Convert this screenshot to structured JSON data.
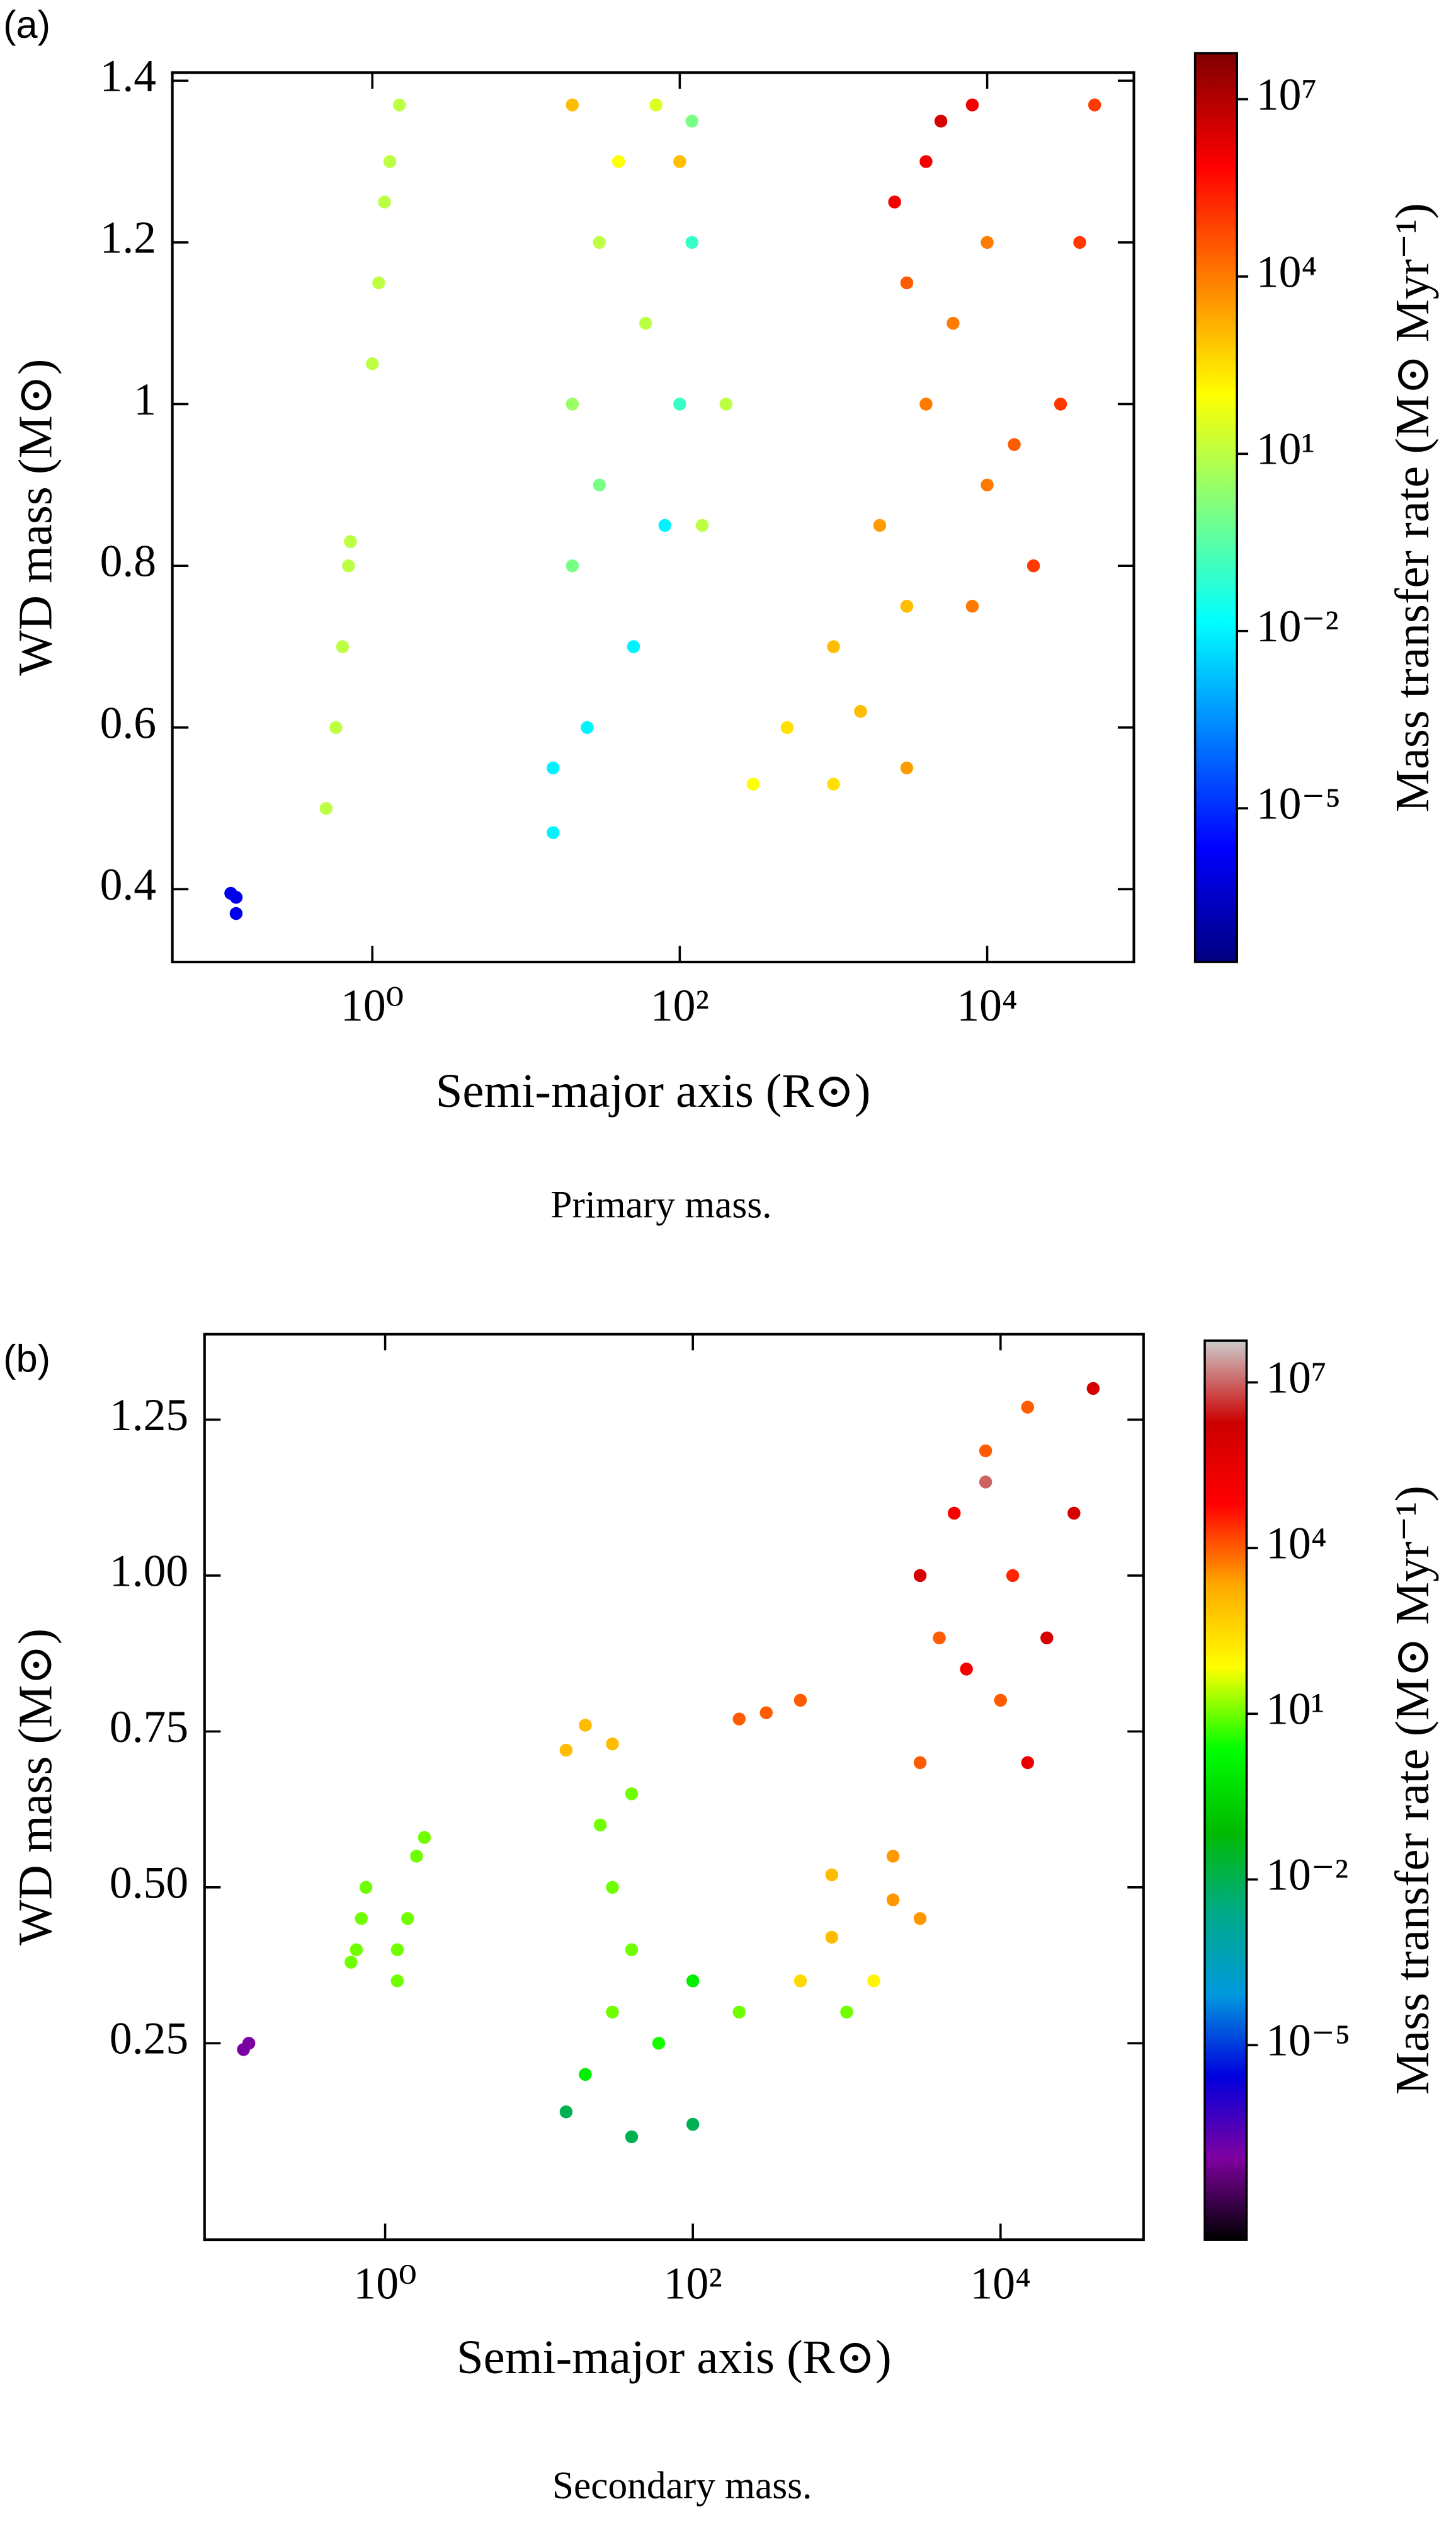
{
  "chart_data": [
    {
      "type": "scatter",
      "panel_label": "(a)",
      "caption": "Primary mass.",
      "x_label": "Semi-major axis (R⊙)",
      "y_label": "WD mass (M⊙)",
      "colorbar_label": "Mass transfer rate (M⊙ Myr⁻¹)",
      "x_log": true,
      "color_log": true,
      "xlim": [
        0.05,
        90000
      ],
      "ylim": [
        0.31,
        1.41
      ],
      "clim": [
        2.5e-08,
        60000000.0
      ],
      "xticks": [
        {
          "value": 1,
          "label": "10⁰"
        },
        {
          "value": 100,
          "label": "10²"
        },
        {
          "value": 10000,
          "label": "10⁴"
        }
      ],
      "yticks": [
        0.4,
        0.6,
        0.8,
        1.0,
        1.2,
        1.4
      ],
      "cticks": [
        {
          "value": 1e-05,
          "label": "10⁻⁵"
        },
        {
          "value": 0.01,
          "label": "10⁻²"
        },
        {
          "value": 10,
          "label": "10¹"
        },
        {
          "value": 10000,
          "label": "10⁴"
        },
        {
          "value": 10000000,
          "label": "10⁷"
        }
      ],
      "colormap": [
        "#00007f",
        "#0000ff",
        "#007fff",
        "#00ffff",
        "#7fff7f",
        "#ffff00",
        "#ff7f00",
        "#ff0000",
        "#7f0000"
      ],
      "x": [
        0.13,
        0.13,
        0.12,
        0.5,
        0.58,
        0.64,
        0.7,
        0.72,
        1.0,
        1.1,
        1.3,
        1.5,
        1.2,
        15,
        15,
        25,
        50,
        80,
        100,
        120,
        120,
        20,
        20,
        30,
        20,
        40,
        60,
        30,
        200,
        140,
        70,
        100,
        300,
        1000,
        3000,
        500,
        1000,
        2000,
        4000,
        3000,
        2500,
        4000,
        8000,
        6000,
        10000,
        20000,
        30000,
        40000,
        50000,
        15000,
        3000,
        1500,
        8000,
        10000,
        5000
      ],
      "values": [
        0.39,
        0.37,
        0.395,
        0.5,
        0.6,
        0.7,
        0.8,
        0.83,
        1.05,
        1.15,
        1.3,
        1.37,
        1.25,
        0.47,
        0.55,
        0.6,
        0.7,
        0.85,
        1.0,
        1.2,
        1.35,
        0.8,
        1.0,
        1.2,
        1.37,
        1.3,
        1.1,
        0.9,
        1.0,
        0.85,
        1.37,
        1.3,
        0.53,
        0.53,
        0.55,
        0.6,
        0.7,
        0.85,
        1.0,
        1.15,
        1.25,
        1.3,
        1.37,
        1.1,
        0.9,
        0.8,
        1.0,
        1.2,
        1.37,
        0.95,
        0.75,
        0.62,
        0.75,
        1.2,
        1.35
      ],
      "c": [
        1e-06,
        1e-06,
        1e-06,
        10,
        10,
        10,
        10,
        10,
        10,
        10,
        10,
        10,
        10,
        0.01,
        0.01,
        0.01,
        0.01,
        0.01,
        0.1,
        0.1,
        1,
        1,
        3,
        10,
        1000,
        100,
        10,
        1,
        10,
        10,
        30,
        1000,
        100,
        300,
        3000,
        300,
        1000,
        3000,
        10000,
        30000,
        1000000,
        1000000,
        1000000,
        10000,
        10000,
        100000,
        100000,
        100000,
        100000,
        30000,
        1000,
        1000,
        10000,
        10000,
        3000000
      ]
    },
    {
      "type": "scatter",
      "panel_label": "(b)",
      "caption": "Secondary mass.",
      "x_label": "Semi-major axis (R⊙)",
      "y_label": "WD mass (M⊙)",
      "colorbar_label": "Mass transfer rate (M⊙ Myr⁻¹)",
      "x_log": true,
      "color_log": true,
      "xlim": [
        0.067,
        85000
      ],
      "ylim": [
        -0.065,
        1.387
      ],
      "clim": [
        3e-09,
        57000000.0
      ],
      "xticks": [
        {
          "value": 1,
          "label": "10⁰"
        },
        {
          "value": 100,
          "label": "10²"
        },
        {
          "value": 10000,
          "label": "10⁴"
        }
      ],
      "yticks": [
        0.25,
        {
          "value": 0.5,
          "label": "0.50"
        },
        0.75,
        {
          "value": 1.0,
          "label": "1.00"
        },
        1.25
      ],
      "cticks": [
        {
          "value": 1e-05,
          "label": "10⁻⁵"
        },
        {
          "value": 0.01,
          "label": "10⁻²"
        },
        {
          "value": 10,
          "label": "10¹"
        },
        {
          "value": 10000,
          "label": "10⁴"
        },
        {
          "value": 10000000,
          "label": "10⁷"
        }
      ],
      "colormap": [
        "#000000",
        "#7f00a0",
        "#0000dd",
        "#0099dd",
        "#00aa88",
        "#00bb00",
        "#00ff00",
        "#ffff00",
        "#ffaa00",
        "#ff0000",
        "#cc0000",
        "#cccccc"
      ],
      "x": [
        0.13,
        0.12,
        0.6,
        0.7,
        0.75,
        0.65,
        1.2,
        1.4,
        1.6,
        1.8,
        1.2,
        15,
        40,
        100,
        20,
        30,
        40,
        30,
        25,
        40,
        100,
        200,
        60,
        15,
        20,
        30,
        200,
        300,
        500,
        500,
        1000,
        1500,
        3000,
        2000,
        800,
        800,
        2000,
        3000,
        4000,
        3000,
        5000,
        8000,
        15000,
        10000,
        15000,
        20000,
        30000,
        40000,
        8000,
        12000,
        6000
      ],
      "values": [
        0.25,
        0.24,
        0.38,
        0.45,
        0.5,
        0.4,
        0.35,
        0.45,
        0.55,
        0.58,
        0.4,
        0.14,
        0.1,
        0.12,
        0.2,
        0.3,
        0.4,
        0.5,
        0.6,
        0.65,
        0.35,
        0.3,
        0.25,
        0.72,
        0.76,
        0.73,
        0.77,
        0.78,
        0.8,
        0.35,
        0.3,
        0.35,
        0.45,
        0.48,
        0.42,
        0.52,
        0.55,
        0.7,
        0.9,
        1.0,
        1.1,
        1.2,
        1.27,
        0.8,
        0.7,
        0.9,
        1.1,
        1.3,
        1.15,
        1.0,
        0.85
      ],
      "c": [
        1e-07,
        1e-07,
        10,
        10,
        10,
        10,
        10,
        10,
        10,
        10,
        10,
        0.01,
        0.01,
        0.01,
        1,
        10,
        10,
        10,
        10,
        10,
        1,
        10,
        3,
        1000,
        1000,
        1000,
        10000,
        10000,
        10000,
        300,
        10,
        100,
        3000,
        3000,
        1000,
        1000,
        3000,
        10000,
        10000,
        1000000,
        100000,
        10000,
        10000,
        10000,
        300000,
        1000000,
        1000000,
        1000000,
        10000000,
        30000,
        100000
      ]
    }
  ]
}
